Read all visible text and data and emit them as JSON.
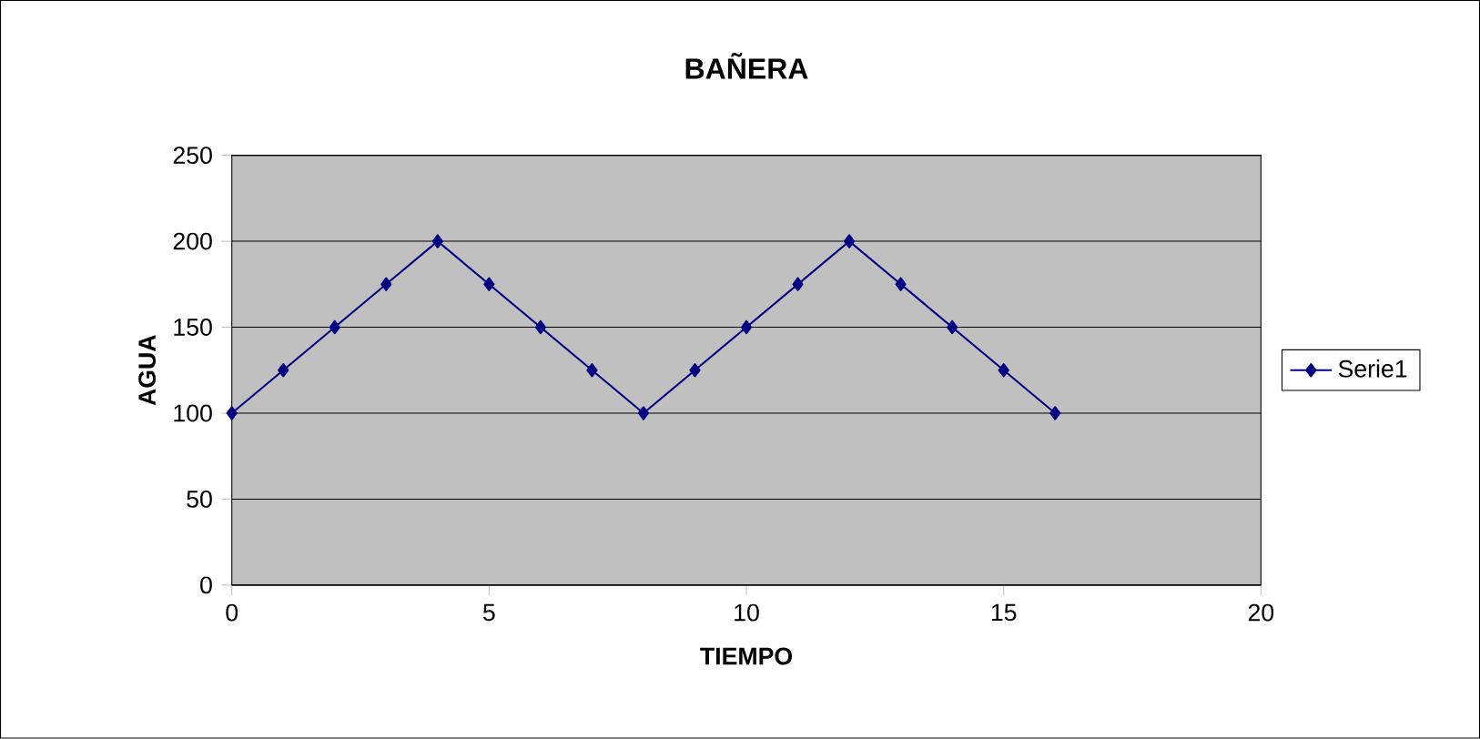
{
  "chart_data": {
    "type": "line",
    "title": "BAÑERA",
    "xlabel": "TIEMPO",
    "ylabel": "AGUA",
    "x": [
      0,
      1,
      2,
      3,
      4,
      5,
      6,
      7,
      8,
      9,
      10,
      11,
      12,
      13,
      14,
      15,
      16
    ],
    "series": [
      {
        "name": "Serie1",
        "color": "#000080",
        "values": [
          100,
          125,
          150,
          175,
          200,
          175,
          150,
          125,
          100,
          125,
          150,
          175,
          200,
          175,
          150,
          125,
          100
        ]
      }
    ],
    "xlim": [
      0,
      20
    ],
    "ylim": [
      0,
      250
    ],
    "xticks": [
      0,
      5,
      10,
      15,
      20
    ],
    "yticks": [
      0,
      50,
      100,
      150,
      200,
      250
    ],
    "grid": "y",
    "legend": "right",
    "marker": "diamond",
    "line_style": "solid"
  }
}
